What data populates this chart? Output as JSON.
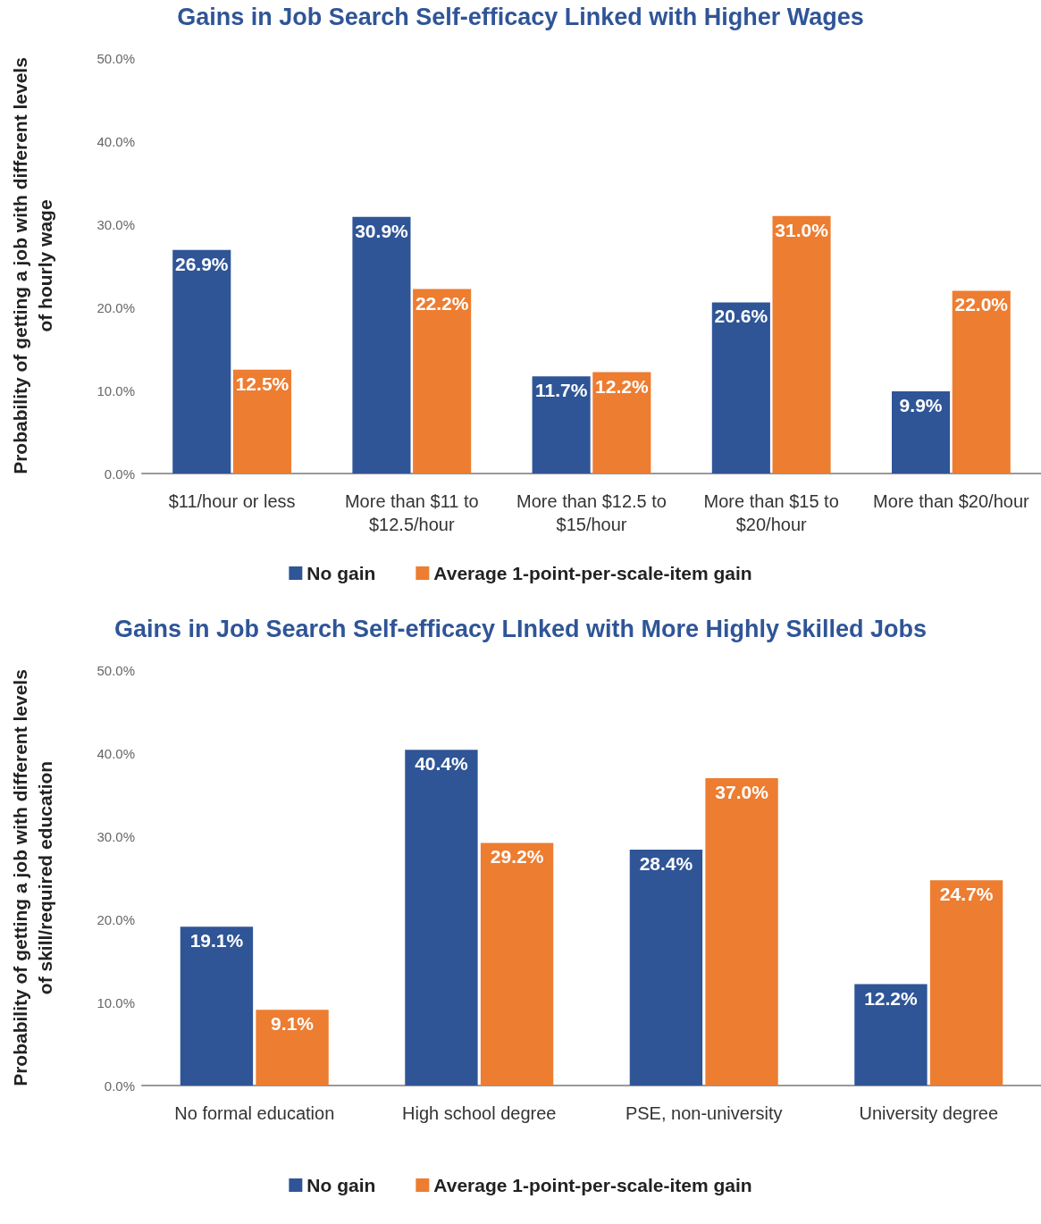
{
  "chart_data": [
    {
      "type": "bar",
      "title": "Gains in Job Search Self-efficacy Linked with Higher Wages",
      "ylabel": "Probability of getting a job with different levels\nof hourly wage",
      "categories": [
        "$11/hour or less",
        "More than $11 to\n$12.5/hour",
        "More than $12.5 to\n$15/hour",
        "More than $15 to\n$20/hour",
        "More than $20/hour"
      ],
      "series": [
        {
          "name": "No gain",
          "color": "#2f5597",
          "values": [
            26.9,
            30.9,
            11.7,
            20.6,
            9.9
          ],
          "value_labels": [
            "26.9%",
            "30.9%",
            "11.7%",
            "20.6%",
            "9.9%"
          ]
        },
        {
          "name": "Average 1-point-per-scale-item gain",
          "color": "#ed7d31",
          "values": [
            12.5,
            22.2,
            12.2,
            31.0,
            22.0
          ],
          "value_labels": [
            "12.5%",
            "22.2%",
            "12.2%",
            "31.0%",
            "22.0%"
          ]
        }
      ],
      "ylim": [
        0,
        50
      ],
      "yticks": [
        {
          "value": 0,
          "label": "0.0%"
        },
        {
          "value": 10,
          "label": "10.0%"
        },
        {
          "value": 20,
          "label": "20.0%"
        },
        {
          "value": 30,
          "label": "30.0%"
        },
        {
          "value": 40,
          "label": "40.0%"
        },
        {
          "value": 50,
          "label": "50.0%"
        }
      ],
      "grid": false,
      "legend": "bottom"
    },
    {
      "type": "bar",
      "title": "Gains in Job Search Self-efficacy LInked with More Highly Skilled Jobs",
      "ylabel": "Probability of getting a job with different levels\nof skill/required education",
      "categories": [
        "No formal education",
        "High school degree",
        "PSE, non-university",
        "University degree"
      ],
      "series": [
        {
          "name": "No gain",
          "color": "#2f5597",
          "values": [
            19.1,
            40.4,
            28.4,
            12.2
          ],
          "value_labels": [
            "19.1%",
            "40.4%",
            "28.4%",
            "12.2%"
          ]
        },
        {
          "name": "Average 1-point-per-scale-item gain",
          "color": "#ed7d31",
          "values": [
            9.1,
            29.2,
            37.0,
            24.7
          ],
          "value_labels": [
            "9.1%",
            "29.2%",
            "37.0%",
            "24.7%"
          ]
        }
      ],
      "ylim": [
        0,
        50
      ],
      "yticks": [
        {
          "value": 0,
          "label": "0.0%"
        },
        {
          "value": 10,
          "label": "10.0%"
        },
        {
          "value": 20,
          "label": "20.0%"
        },
        {
          "value": 30,
          "label": "30.0%"
        },
        {
          "value": 40,
          "label": "40.0%"
        },
        {
          "value": 50,
          "label": "50.0%"
        }
      ],
      "grid": false,
      "legend": "bottom"
    }
  ]
}
